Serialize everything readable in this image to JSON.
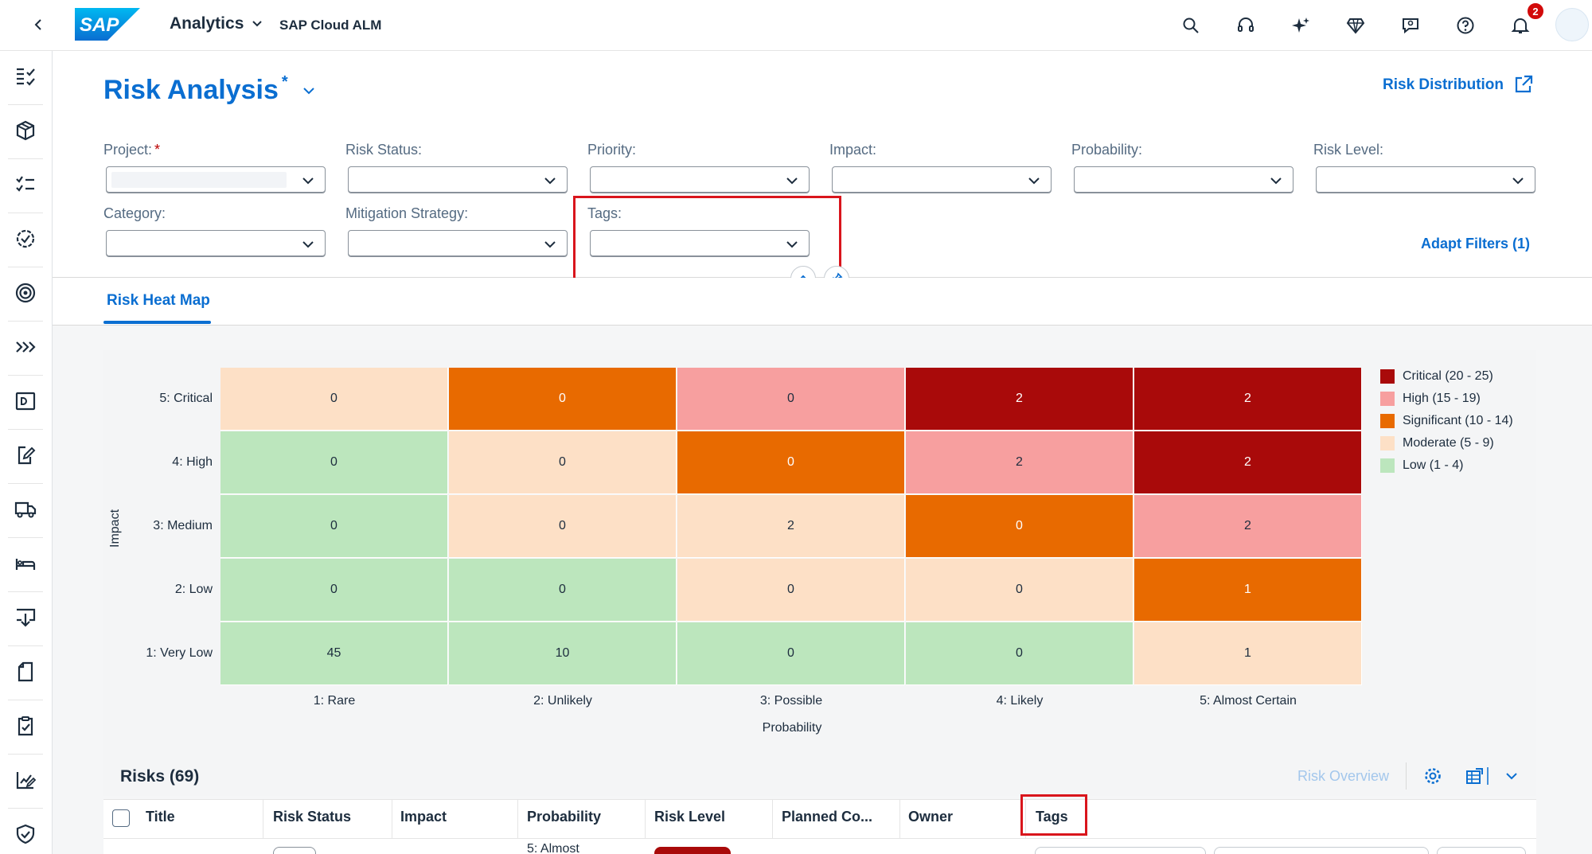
{
  "shell": {
    "logo_text": "SAP",
    "app_title": "Analytics",
    "app_subtitle": "SAP Cloud ALM",
    "notification_count": "2",
    "icons": [
      "back-icon",
      "search-icon",
      "headset-icon",
      "sparkle-icon",
      "diamond-icon",
      "feedback-icon",
      "help-icon",
      "bell-icon"
    ]
  },
  "sidenav": {
    "icons": [
      "overview-icon",
      "box-icon",
      "checklist-icon",
      "settings-badge-icon",
      "target-icon",
      "chevrons-right-icon",
      "id-card-icon",
      "edit-doc-icon",
      "truck-icon",
      "bed-icon",
      "download-board-icon",
      "document-icon",
      "clipboard-check-icon",
      "chart-edit-icon",
      "shield-icon"
    ]
  },
  "header": {
    "title": "Risk Analysis",
    "title_marker": "*",
    "risk_distribution": "Risk Distribution",
    "adapt_filters": "Adapt Filters (1)",
    "filters_row1": [
      {
        "label": "Project:",
        "required": "*"
      },
      {
        "label": "Risk Status:"
      },
      {
        "label": "Priority:"
      },
      {
        "label": "Impact:"
      },
      {
        "label": "Probability:"
      },
      {
        "label": "Risk Level:"
      }
    ],
    "filters_row2": [
      {
        "label": "Category:"
      },
      {
        "label": "Mitigation Strategy:"
      },
      {
        "label": "Tags:"
      }
    ]
  },
  "tabs": [
    {
      "label": "Risk Heat Map"
    }
  ],
  "heatmap": {
    "colors": {
      "critical": "#a90a0a",
      "high": "#f79f9f",
      "significant": "#e86a00",
      "moderate": "#fde0c6",
      "low": "#bce6bd"
    },
    "y_axis_title": "Impact",
    "x_axis_title": "Probability",
    "y_categories": [
      "5: Critical",
      "4: High",
      "3: Medium",
      "2: Low",
      "1: Very Low"
    ],
    "x_categories": [
      "1: Rare",
      "2: Unlikely",
      "3: Possible",
      "4: Likely",
      "5: Almost Certain"
    ],
    "rows": [
      {
        "values": [
          "0",
          "0",
          "0",
          "2",
          "2"
        ],
        "levels": [
          "moderate",
          "significant",
          "high",
          "critical",
          "critical"
        ]
      },
      {
        "values": [
          "0",
          "0",
          "0",
          "2",
          "2"
        ],
        "levels": [
          "low",
          "moderate",
          "significant",
          "high",
          "critical"
        ]
      },
      {
        "values": [
          "0",
          "0",
          "2",
          "0",
          "2"
        ],
        "levels": [
          "low",
          "moderate",
          "moderate",
          "significant",
          "high"
        ]
      },
      {
        "values": [
          "0",
          "0",
          "0",
          "0",
          "1"
        ],
        "levels": [
          "low",
          "low",
          "moderate",
          "moderate",
          "significant"
        ]
      },
      {
        "values": [
          "45",
          "10",
          "0",
          "0",
          "1"
        ],
        "levels": [
          "low",
          "low",
          "low",
          "low",
          "moderate"
        ]
      }
    ],
    "legend": [
      {
        "label": "Critical (20 - 25)",
        "level": "critical"
      },
      {
        "label": "High (15 - 19)",
        "level": "high"
      },
      {
        "label": "Significant (10 - 14)",
        "level": "significant"
      },
      {
        "label": "Moderate (5 - 9)",
        "level": "moderate"
      },
      {
        "label": "Low (1 - 4)",
        "level": "low"
      }
    ]
  },
  "risks": {
    "title": "Risks (69)",
    "risk_overview": "Risk Overview",
    "columns": [
      "Title",
      "Risk Status",
      "Impact",
      "Probability",
      "Risk Level",
      "Planned Co...",
      "Owner",
      "Tags"
    ],
    "first_row_probability": "5: Almost"
  }
}
